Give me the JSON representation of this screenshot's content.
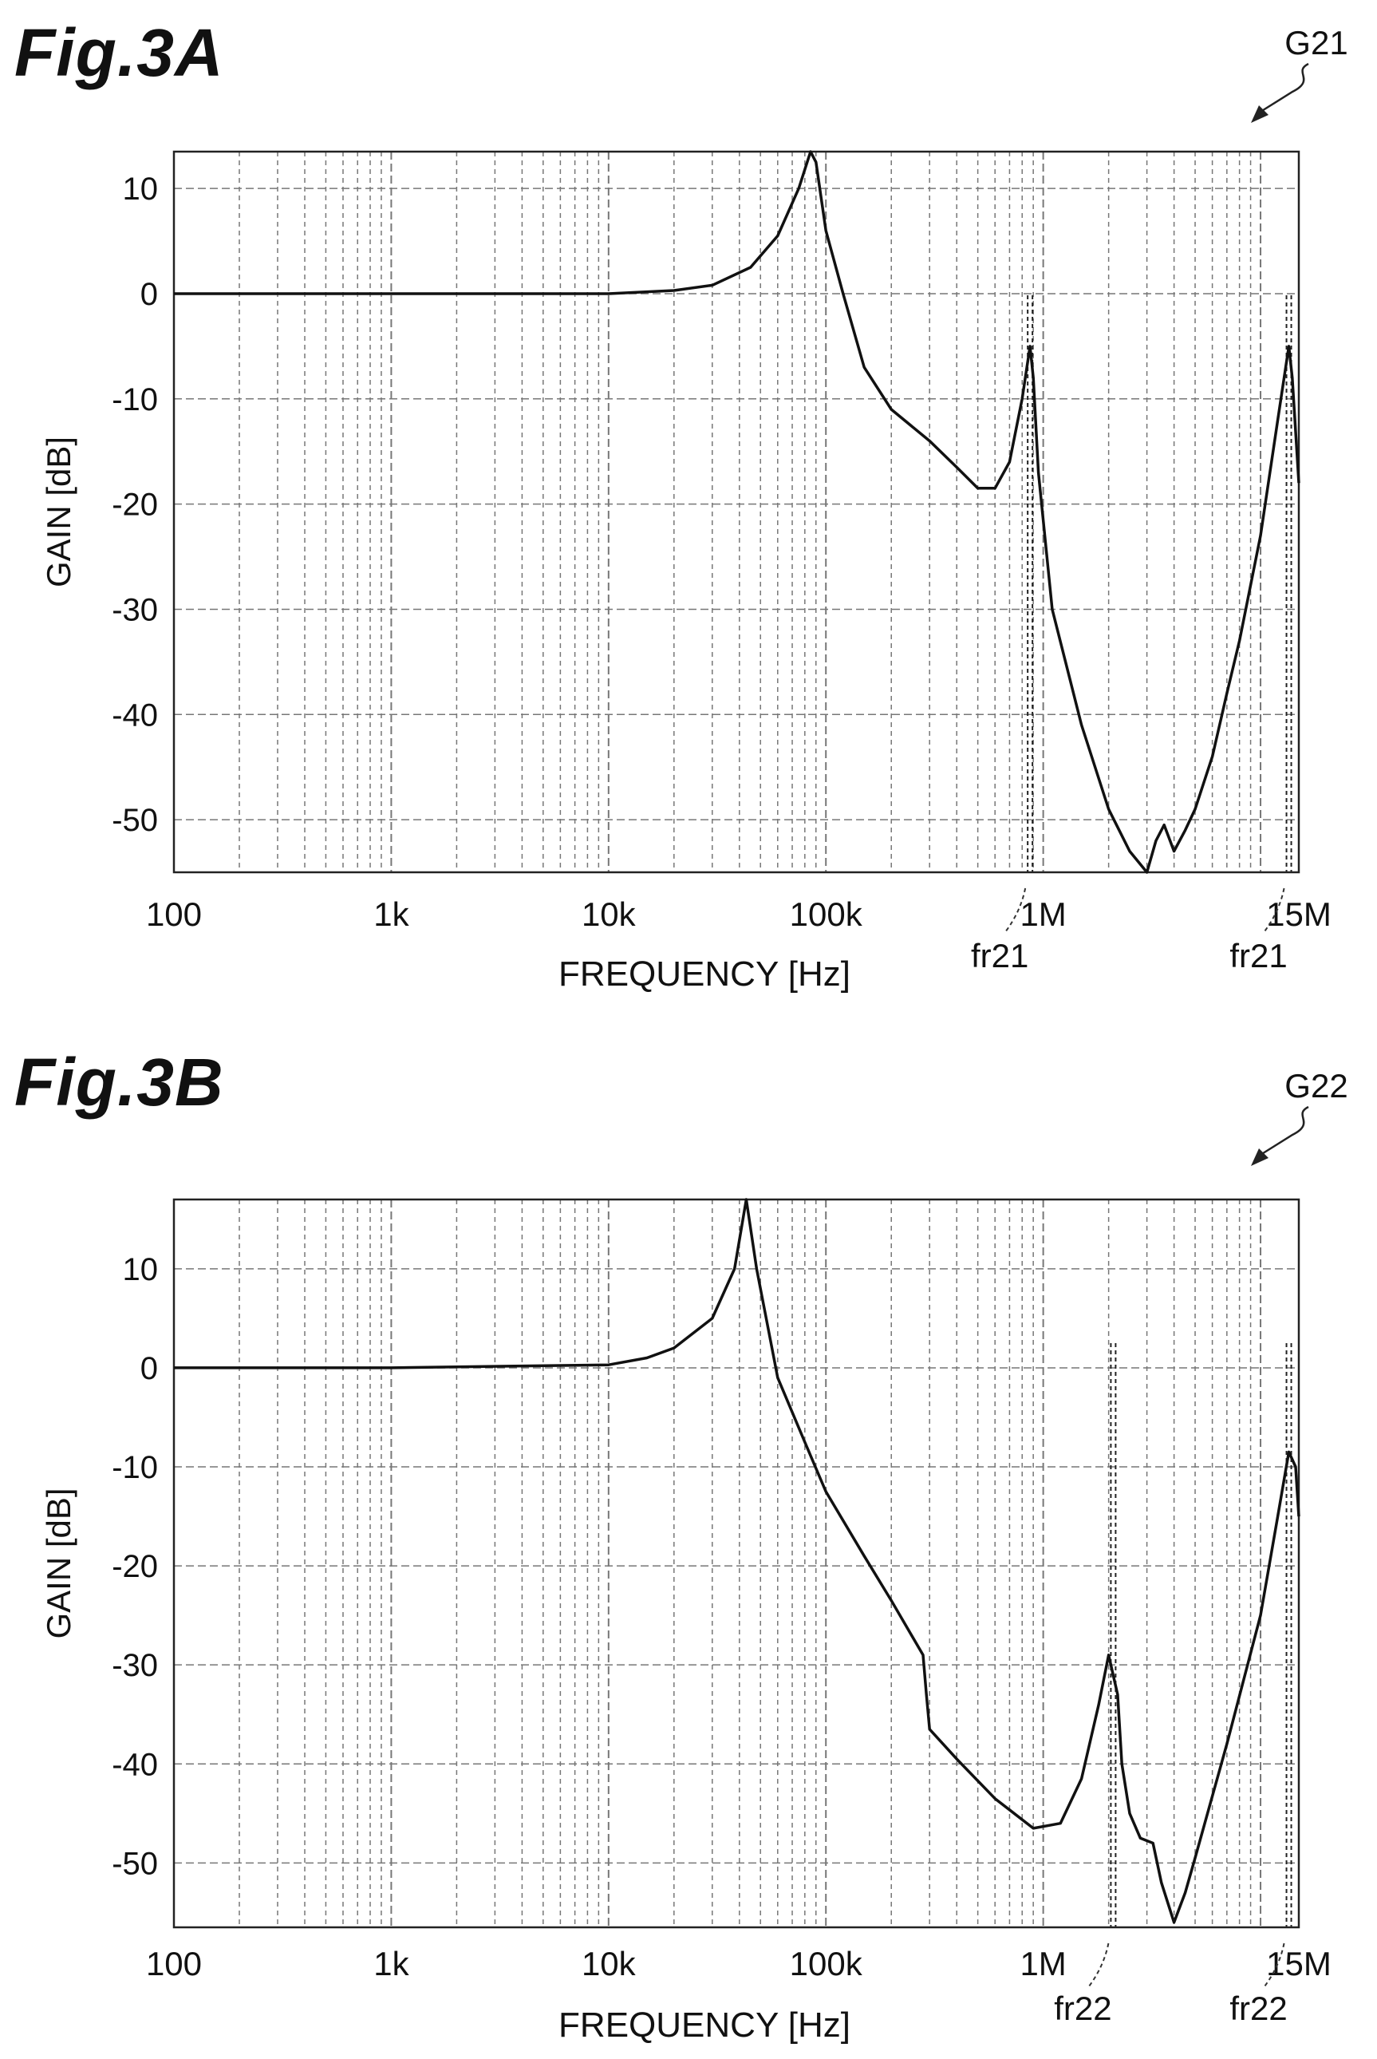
{
  "chart_data": [
    {
      "figure_label": "Fig.3A",
      "type": "line",
      "ref_label": "G21",
      "xlabel": "FREQUENCY [Hz]",
      "ylabel": "GAIN [dB]",
      "xscale": "log",
      "xlim": [
        100,
        15000000
      ],
      "ylim": [
        -55,
        13.5
      ],
      "xticks": [
        {
          "value": 100,
          "label": "100"
        },
        {
          "value": 1000,
          "label": "1k"
        },
        {
          "value": 10000,
          "label": "10k"
        },
        {
          "value": 100000,
          "label": "100k"
        },
        {
          "value": 1000000,
          "label": "1M"
        },
        {
          "value": 15000000,
          "label": "15M"
        }
      ],
      "yticks": [
        10,
        0,
        -10,
        -20,
        -30,
        -40,
        -50
      ],
      "grid": true,
      "series": [
        {
          "x": [
            100,
            1000,
            10000,
            20000,
            30000,
            45000,
            60000,
            75000,
            85000,
            90000,
            100000,
            120000,
            150000,
            200000,
            300000,
            400000,
            500000,
            600000,
            700000,
            800000,
            870000,
            900000,
            950000,
            1100000,
            1500000,
            2000000,
            2500000,
            3000000,
            3300000,
            3600000,
            4000000,
            4500000,
            5000000,
            6000000,
            7000000,
            8000000,
            10000000,
            12000000,
            13500000,
            14000000,
            15000000
          ],
          "y": [
            0,
            0,
            0,
            0.3,
            0.8,
            2.5,
            5.5,
            10,
            13.5,
            12.5,
            6,
            0,
            -7,
            -11,
            -14,
            -16.5,
            -18.5,
            -18.5,
            -16,
            -10,
            -5,
            -8,
            -17,
            -30,
            -41,
            -49,
            -53,
            -55,
            -52,
            -50.5,
            -53,
            -51,
            -49,
            -44,
            -38,
            -33,
            -23,
            -12,
            -5,
            -8,
            -18
          ]
        }
      ],
      "markers": [
        {
          "x": 870000,
          "label": "fr21"
        },
        {
          "x": 13500000,
          "label": "fr21"
        }
      ]
    },
    {
      "figure_label": "Fig.3B",
      "type": "line",
      "ref_label": "G22",
      "xlabel": "FREQUENCY [Hz]",
      "ylabel": "GAIN [dB]",
      "xscale": "log",
      "xlim": [
        100,
        15000000
      ],
      "ylim": [
        -56.5,
        17
      ],
      "xticks": [
        {
          "value": 100,
          "label": "100"
        },
        {
          "value": 1000,
          "label": "1k"
        },
        {
          "value": 10000,
          "label": "10k"
        },
        {
          "value": 100000,
          "label": "100k"
        },
        {
          "value": 1000000,
          "label": "1M"
        },
        {
          "value": 15000000,
          "label": "15M"
        }
      ],
      "yticks": [
        10,
        0,
        -10,
        -20,
        -30,
        -40,
        -50
      ],
      "grid": true,
      "series": [
        {
          "x": [
            100,
            1000,
            10000,
            15000,
            20000,
            30000,
            38000,
            43000,
            48000,
            60000,
            80000,
            100000,
            150000,
            200000,
            280000,
            290000,
            300000,
            400000,
            600000,
            900000,
            1200000,
            1500000,
            1800000,
            2000000,
            2200000,
            2300000,
            2500000,
            2800000,
            3200000,
            3500000,
            4000000,
            4500000,
            5000000,
            7000000,
            10000000,
            12000000,
            13500000,
            14500000,
            15000000
          ],
          "y": [
            0,
            0,
            0.3,
            1,
            2,
            5,
            10,
            17,
            10,
            -1,
            -7.5,
            -12.5,
            -19,
            -23.5,
            -29,
            -33,
            -36.5,
            -39.5,
            -43.5,
            -46.5,
            -46,
            -41.5,
            -34,
            -29,
            -33,
            -40,
            -45,
            -47.5,
            -48,
            -52,
            -56,
            -53,
            -49.5,
            -38,
            -25,
            -15,
            -8.5,
            -10,
            -15
          ]
        }
      ],
      "markers": [
        {
          "x": 2100000,
          "label": "fr22"
        },
        {
          "x": 13500000,
          "label": "fr22"
        }
      ]
    }
  ]
}
